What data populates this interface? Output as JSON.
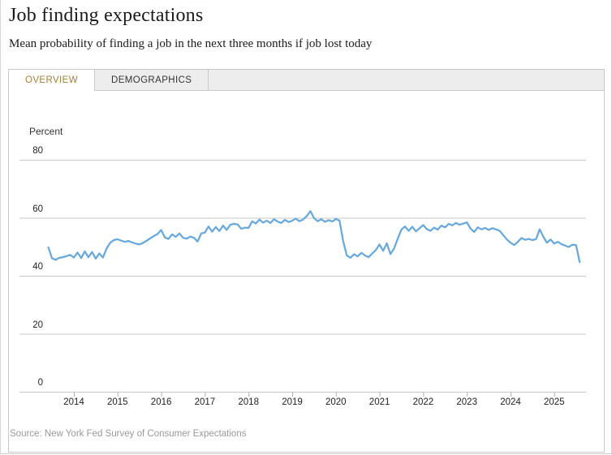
{
  "page": {
    "title": "Job finding expectations",
    "subtitle": "Mean probability of finding a job in the next three months if job lost today",
    "source": "Source: New York Fed Survey of Consumer Expectations"
  },
  "tabs": [
    {
      "label": "OVERVIEW",
      "active": true
    },
    {
      "label": "DEMOGRAPHICS",
      "active": false
    }
  ],
  "colors": {
    "line": "#68a8db",
    "gridline": "#c9c9c9",
    "tick": "#b0b0b0",
    "active_tab_text": "#a5803c",
    "tab_strip_bg": "#ededed",
    "source_text": "#999999"
  },
  "chart_data": {
    "type": "line",
    "title": "Job finding expectations",
    "ylabel": "Percent",
    "xlabel": "",
    "ylim": [
      0,
      88
    ],
    "yticks": [
      0,
      20,
      40,
      60,
      80
    ],
    "year_ticks": [
      2014,
      2015,
      2016,
      2017,
      2018,
      2019,
      2020,
      2021,
      2022,
      2023,
      2024,
      2025
    ],
    "grid": "horizontal-only",
    "legend": "none",
    "series": [
      {
        "name": "Mean probability of finding a job in the next three months if job lost today",
        "frequency": "monthly",
        "start": "2013-06",
        "end": "2025-08",
        "values": [
          49.8,
          46.0,
          45.5,
          46.2,
          46.4,
          46.8,
          47.2,
          46.3,
          48.0,
          46.1,
          48.4,
          46.4,
          48.2,
          45.9,
          47.7,
          46.3,
          49.4,
          51.4,
          52.3,
          52.6,
          52.1,
          51.7,
          52.0,
          51.5,
          51.1,
          50.8,
          51.3,
          52.1,
          52.9,
          53.7,
          54.4,
          55.8,
          53.2,
          52.7,
          54.3,
          53.4,
          54.6,
          53.1,
          52.8,
          53.5,
          53.1,
          51.8,
          54.6,
          54.9,
          57.0,
          55.2,
          56.8,
          55.4,
          57.3,
          55.8,
          57.6,
          57.9,
          57.7,
          56.2,
          56.6,
          56.5,
          58.8,
          58.0,
          59.4,
          58.3,
          59.0,
          58.2,
          59.5,
          58.7,
          58.2,
          59.3,
          58.5,
          59.0,
          59.7,
          58.8,
          59.4,
          60.6,
          62.3,
          59.9,
          58.8,
          59.5,
          58.6,
          59.2,
          58.7,
          59.6,
          59.0,
          52.0,
          47.0,
          46.2,
          47.4,
          46.7,
          47.9,
          47.0,
          46.4,
          47.7,
          48.9,
          50.8,
          48.6,
          51.2,
          47.5,
          49.4,
          52.8,
          55.9,
          57.0,
          55.5,
          56.9,
          55.3,
          56.4,
          57.5,
          56.1,
          55.5,
          56.6,
          55.9,
          57.3,
          56.7,
          57.9,
          57.4,
          58.2,
          57.6,
          58.0,
          58.4,
          56.3,
          55.1,
          56.7,
          56.0,
          56.5,
          55.8,
          56.4,
          56.0,
          55.5,
          54.0,
          52.5,
          51.4,
          50.6,
          51.7,
          53.0,
          52.4,
          52.7,
          52.3,
          52.6,
          56.0,
          53.5,
          51.4,
          52.5,
          51.1,
          51.7,
          50.9,
          50.4,
          49.9,
          50.7,
          50.6,
          44.7
        ]
      }
    ]
  }
}
